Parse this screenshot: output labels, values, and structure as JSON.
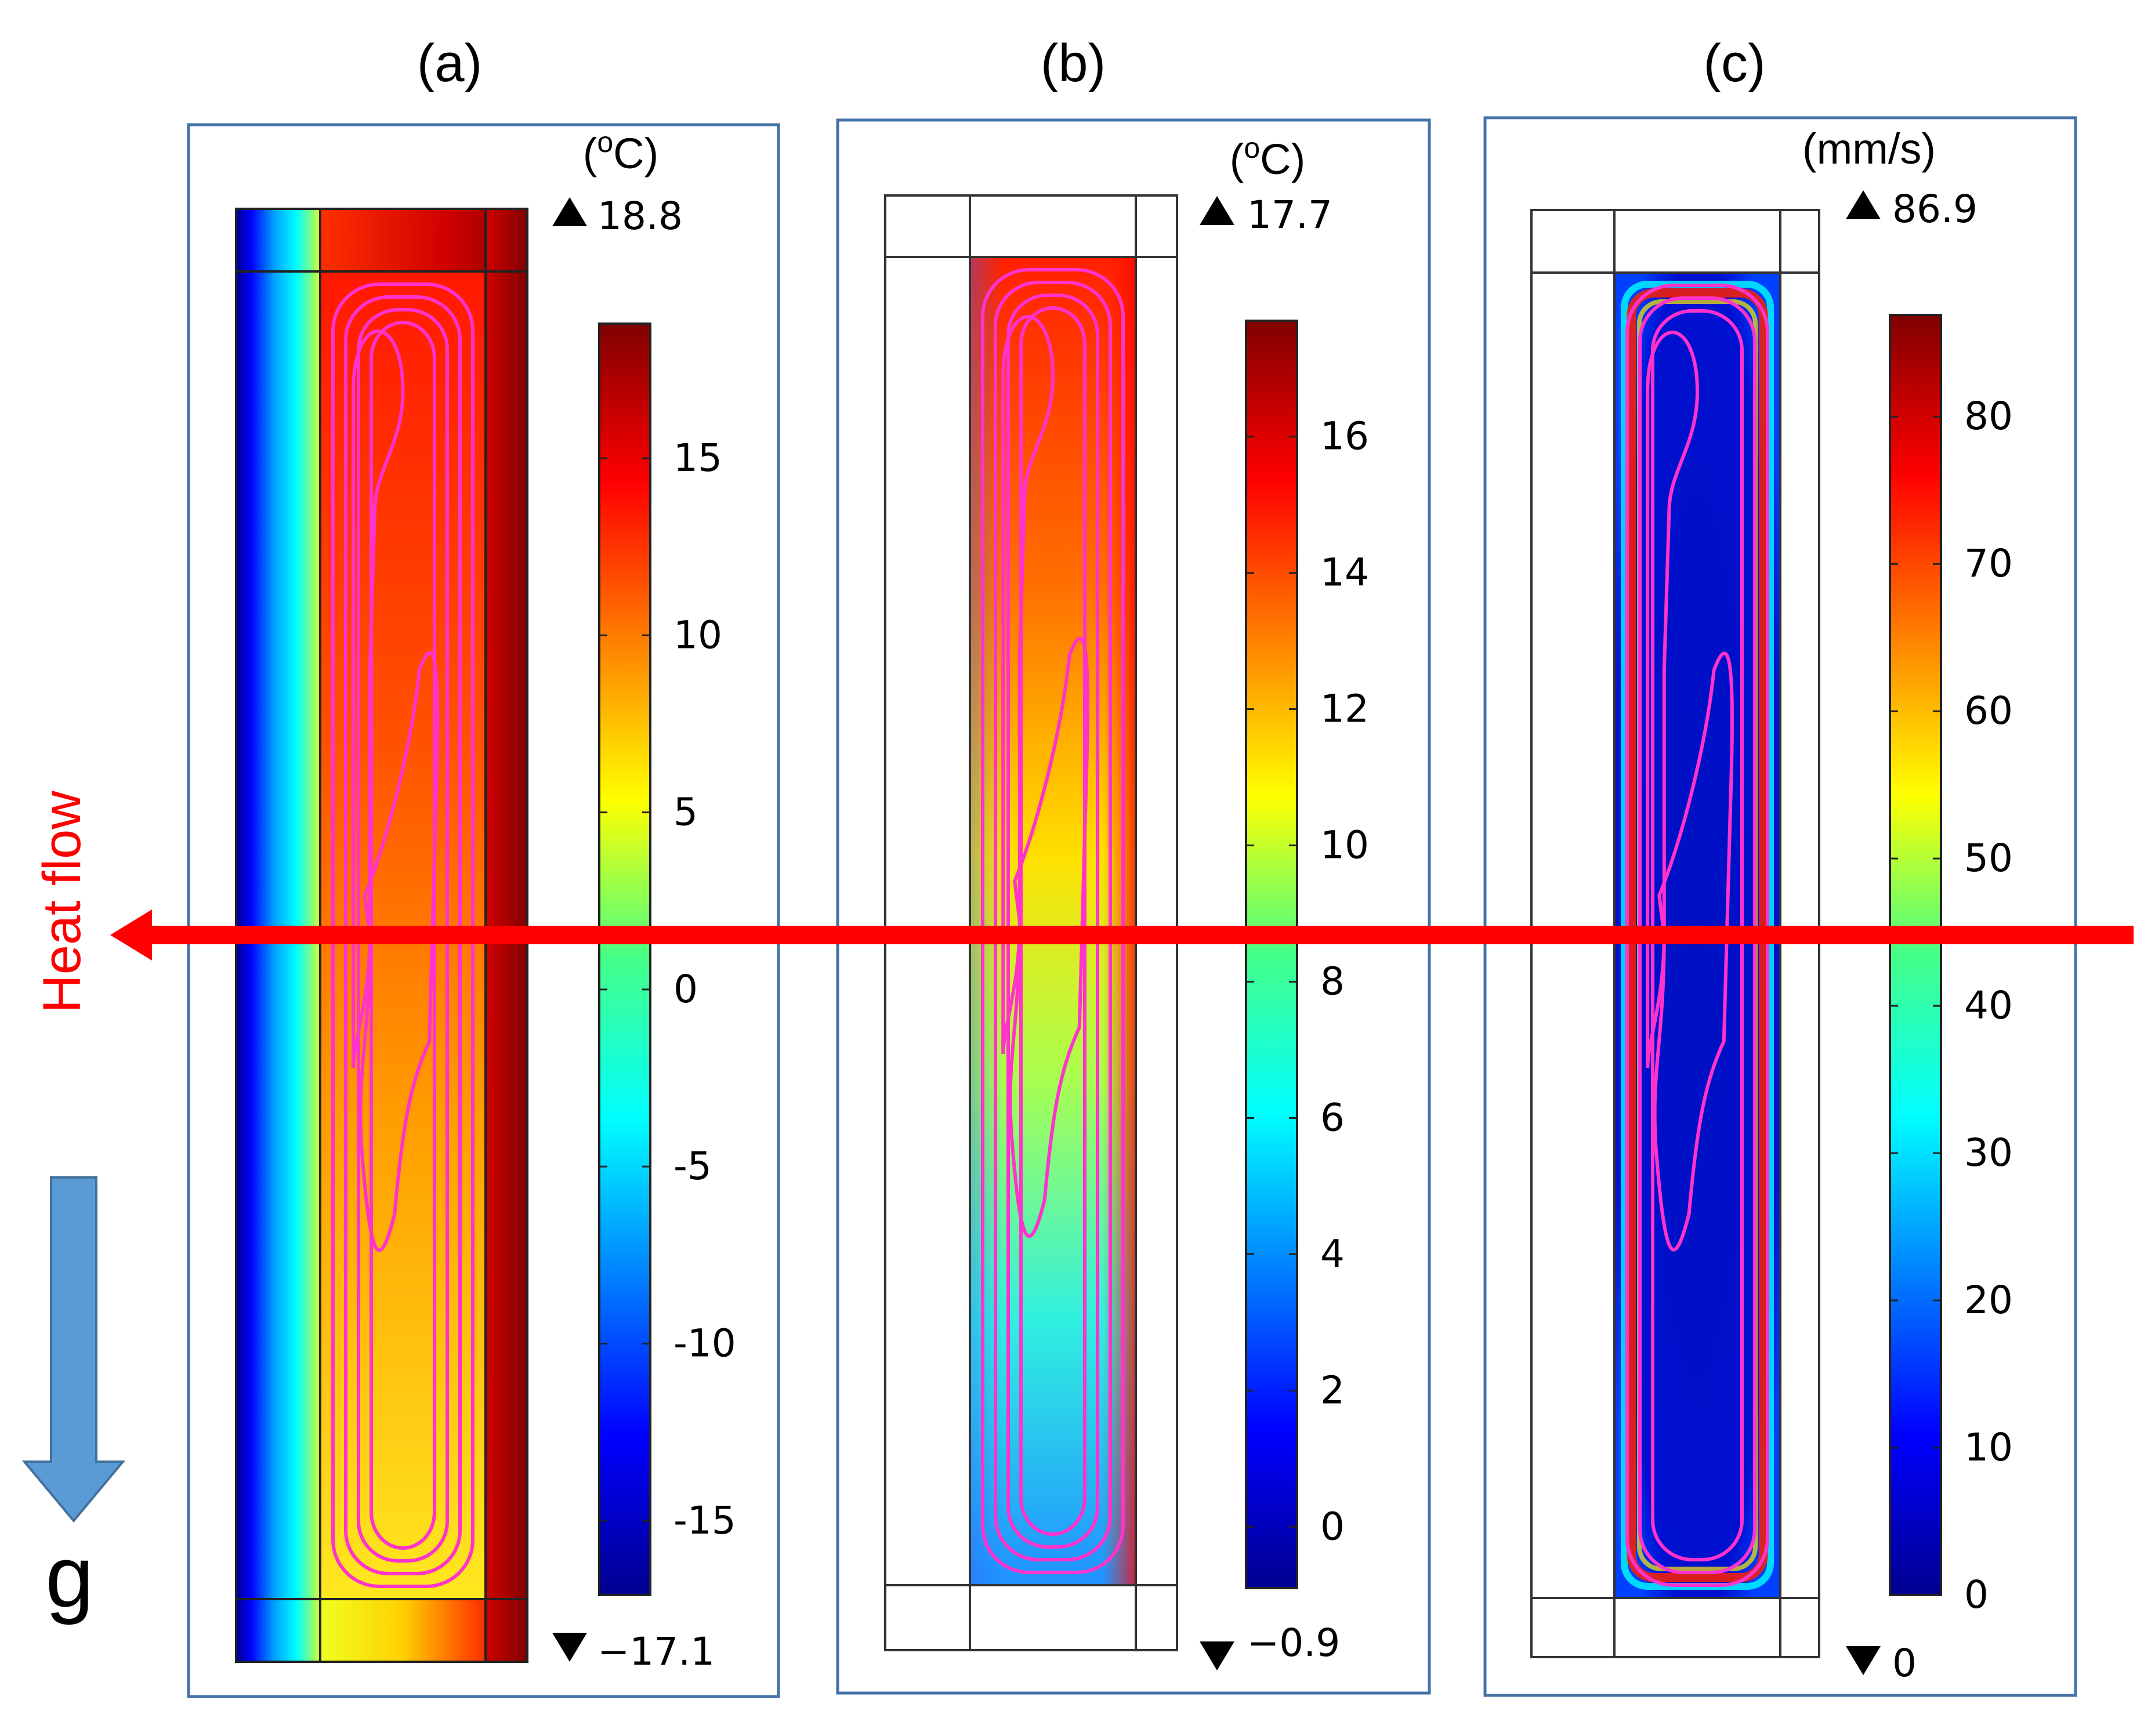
{
  "panels": [
    {
      "id": "a",
      "label": "(a)",
      "unit_base": "C",
      "unit_sup": "o",
      "max_label": "18.8",
      "min_label": "−17.1",
      "ticks": [
        {
          "value": 15,
          "label": "15"
        },
        {
          "value": 10,
          "label": "10"
        },
        {
          "value": 5,
          "label": "5"
        },
        {
          "value": 0,
          "label": "0"
        },
        {
          "value": -5,
          "label": "-5"
        },
        {
          "value": -10,
          "label": "-10"
        },
        {
          "value": -15,
          "label": "-15"
        }
      ],
      "range": [
        -17.1,
        18.8
      ],
      "field": "temperature-with-walls"
    },
    {
      "id": "b",
      "label": "(b)",
      "unit_base": "C",
      "unit_sup": "o",
      "max_label": "17.7",
      "min_label": "−0.9",
      "ticks": [
        {
          "value": 16,
          "label": "16"
        },
        {
          "value": 14,
          "label": "14"
        },
        {
          "value": 12,
          "label": "12"
        },
        {
          "value": 10,
          "label": "10"
        },
        {
          "value": 8,
          "label": "8"
        },
        {
          "value": 6,
          "label": "6"
        },
        {
          "value": 4,
          "label": "4"
        },
        {
          "value": 2,
          "label": "2"
        },
        {
          "value": 0,
          "label": "0"
        }
      ],
      "range": [
        -0.9,
        17.7
      ],
      "field": "temperature-cavity"
    },
    {
      "id": "c",
      "label": "(c)",
      "unit_text": "(mm/s)",
      "max_label": "86.9",
      "min_label": "0",
      "ticks": [
        {
          "value": 80,
          "label": "80"
        },
        {
          "value": 70,
          "label": "70"
        },
        {
          "value": 60,
          "label": "60"
        },
        {
          "value": 50,
          "label": "50"
        },
        {
          "value": 40,
          "label": "40"
        },
        {
          "value": 30,
          "label": "30"
        },
        {
          "value": 20,
          "label": "20"
        },
        {
          "value": 10,
          "label": "10"
        },
        {
          "value": 0,
          "label": "0"
        }
      ],
      "range": [
        0,
        86.9
      ],
      "field": "velocity-cavity"
    }
  ],
  "annotations": {
    "heat_flow": "Heat flow",
    "gravity": "g"
  },
  "colors": {
    "heat_arrow": "#ff0000",
    "gravity_arrow": "#5b9bd5",
    "frame": "#4472a8",
    "streamline": "#ff33cc"
  }
}
